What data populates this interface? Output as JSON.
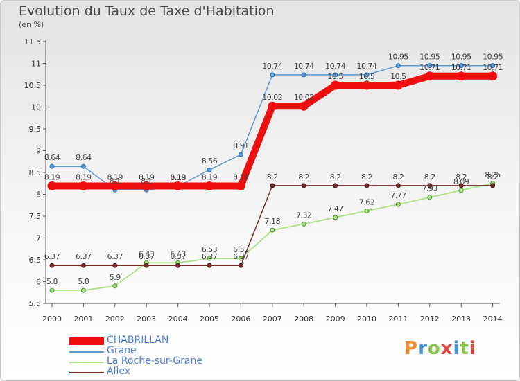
{
  "title": "Evolution du Taux de Taxe d'Habitation",
  "subtitle": "(en %)",
  "logo": {
    "text": "Proxiti",
    "colors": [
      "#f08a2c",
      "#3a9ad9",
      "#8bc34a",
      "#e5433a",
      "#3a9ad9",
      "#8bc34a",
      "#e5433a"
    ]
  },
  "chart_data": {
    "type": "line",
    "x": [
      "2000",
      "2001",
      "2002",
      "2003",
      "2004",
      "2005",
      "2006",
      "2007",
      "2008",
      "2009",
      "2010",
      "2011",
      "2012",
      "2013",
      "2014"
    ],
    "ylim": [
      5.5,
      11.5
    ],
    "yticks": [
      "5.5",
      "6",
      "6.5",
      "7",
      "7.5",
      "8",
      "8.5",
      "9",
      "9.5",
      "10",
      "10.5",
      "11",
      "11.5"
    ],
    "grid": false,
    "legend_position": "bottom-left",
    "series": [
      {
        "name": "CHABRILLAN",
        "color": "#ee1010",
        "values": [
          8.19,
          8.19,
          8.19,
          8.19,
          8.19,
          8.19,
          8.19,
          10.02,
          10.02,
          10.5,
          10.5,
          10.5,
          10.71,
          10.71,
          10.71
        ],
        "labels": [
          "8.19",
          "8.19",
          "8.19",
          "8.19",
          "8.19",
          "8.19",
          "8.19",
          "10.02",
          "10.02",
          "10.5",
          "10.5",
          "10.5",
          "10.71",
          "10.71",
          "10.71"
        ]
      },
      {
        "name": "Grane",
        "color": "#5b9bd5",
        "values": [
          8.64,
          8.64,
          8.1,
          8.1,
          8.18,
          8.56,
          8.91,
          10.74,
          10.74,
          10.74,
          10.74,
          10.95,
          10.95,
          10.95,
          10.95
        ],
        "labels": [
          "8.64",
          "8.64",
          "8.1",
          "8.1",
          "8.18",
          "8.56",
          "8.91",
          "10.74",
          "10.74",
          "10.74",
          "10.74",
          "10.95",
          "10.95",
          "10.95",
          "10.95"
        ]
      },
      {
        "name": "La Roche-sur-Grane",
        "color": "#a9e281",
        "values": [
          5.8,
          5.8,
          5.9,
          6.43,
          6.43,
          6.53,
          6.53,
          7.18,
          7.32,
          7.47,
          7.62,
          7.77,
          7.93,
          8.09,
          8.25
        ],
        "labels": [
          "5.8",
          "5.8",
          "5.9",
          "6.43",
          "6.43",
          "6.53",
          "6.53",
          "7.18",
          "7.32",
          "7.47",
          "7.62",
          "7.77",
          "7.93",
          "8.09",
          "8.25"
        ]
      },
      {
        "name": "Allex",
        "color": "#7b2a2a",
        "values": [
          6.37,
          6.37,
          6.37,
          6.37,
          6.37,
          6.37,
          6.37,
          8.2,
          8.2,
          8.2,
          8.2,
          8.2,
          8.2,
          8.2,
          8.2
        ],
        "labels": [
          "6.37",
          "6.37",
          "6.37",
          "6.37",
          "6.37",
          "6.37",
          "6.37",
          "8.2",
          "8.2",
          "8.2",
          "8.2",
          "8.2",
          "8.2",
          "8.2",
          "8.2"
        ]
      }
    ]
  }
}
